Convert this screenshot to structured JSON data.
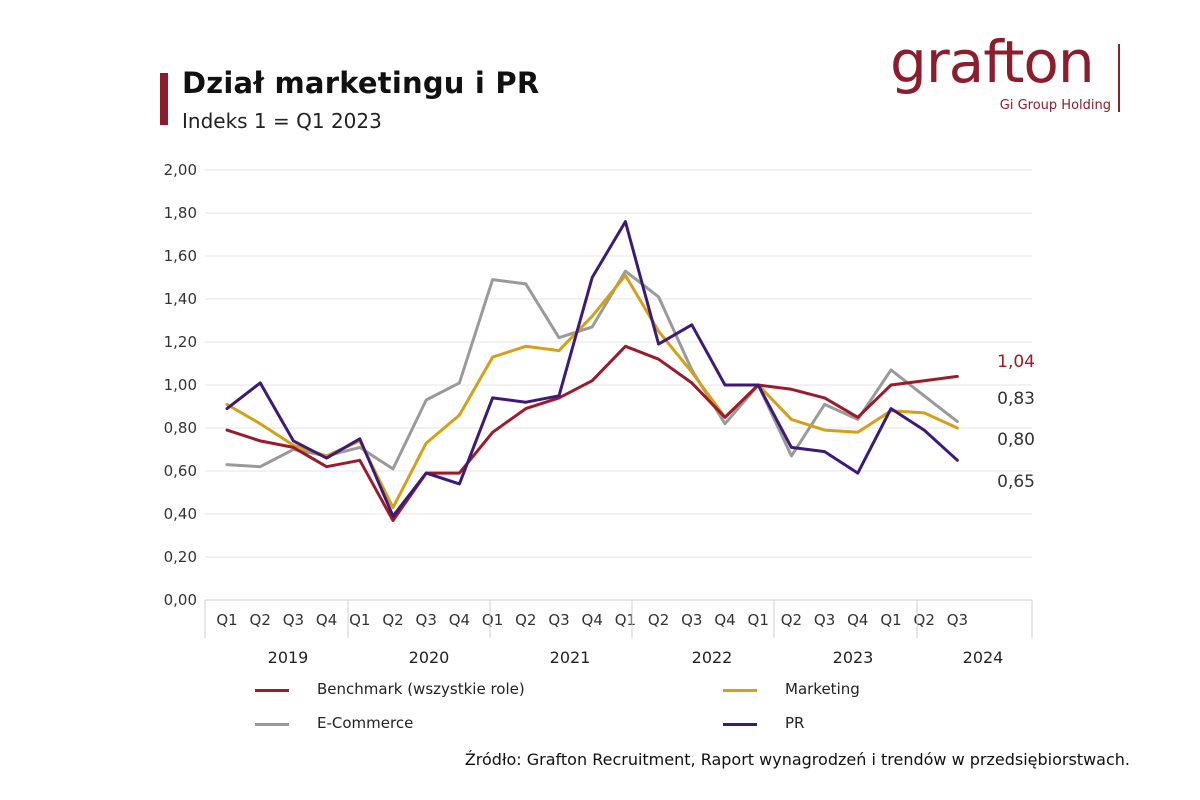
{
  "header": {
    "title": "Dział marketingu i PR",
    "subtitle": "Indeks 1 = Q1 2023"
  },
  "logo": {
    "text": "grafton",
    "subtext": "Gi Group Holding"
  },
  "source": "Źródło: Grafton Recruitment, Raport wynagrodzeń i trendów w przedsiębiorstwach.",
  "colors": {
    "benchmark": "#9b1b2a",
    "marketing": "#d4a017",
    "ecommerce": "#9a9a9a",
    "pr": "#3e1a78",
    "axis": "#cfcfcf"
  },
  "chart_data": {
    "type": "line",
    "title": "Dział marketingu i PR",
    "subtitle": "Indeks 1 = Q1 2023",
    "ylim": [
      0,
      2
    ],
    "yticks": [
      "0,00",
      "0,20",
      "0,40",
      "0,60",
      "0,80",
      "1,00",
      "1,20",
      "1,40",
      "1,60",
      "1,80",
      "2,00"
    ],
    "quarter_labels": [
      "Q1",
      "Q2",
      "Q3",
      "Q4",
      "Q1",
      "Q2",
      "Q3",
      "Q4",
      "Q1",
      "Q2",
      "Q3",
      "Q4",
      "Q1",
      "Q2",
      "Q3",
      "Q4",
      "Q1",
      "Q2",
      "Q3",
      "Q4",
      "Q1",
      "Q2",
      "Q3"
    ],
    "years": [
      "2019",
      "2020",
      "2021",
      "2022",
      "2023",
      "2024"
    ],
    "series": [
      {
        "key": "benchmark",
        "name": "Benchmark (wszystkie role)",
        "values": [
          0.79,
          0.74,
          0.71,
          0.62,
          0.65,
          0.37,
          0.59,
          0.59,
          0.78,
          0.89,
          0.94,
          1.02,
          1.18,
          1.12,
          1.01,
          0.85,
          1.0,
          0.98,
          0.94,
          0.85,
          1.0,
          1.02,
          1.04
        ],
        "end_label": "1,04"
      },
      {
        "key": "marketing",
        "name": "Marketing",
        "values": [
          0.91,
          0.82,
          0.72,
          0.67,
          0.74,
          0.43,
          0.73,
          0.86,
          1.13,
          1.18,
          1.16,
          1.32,
          1.51,
          1.25,
          1.06,
          0.85,
          1.0,
          0.84,
          0.79,
          0.78,
          0.88,
          0.87,
          0.8
        ],
        "end_label": "0,80"
      },
      {
        "key": "ecommerce",
        "name": "E-Commerce",
        "values": [
          0.63,
          0.62,
          0.7,
          0.67,
          0.71,
          0.61,
          0.93,
          1.01,
          1.49,
          1.47,
          1.22,
          1.27,
          1.53,
          1.41,
          1.07,
          0.82,
          1.0,
          0.67,
          0.91,
          0.84,
          1.07,
          0.95,
          0.83
        ],
        "end_label": "0,83"
      },
      {
        "key": "pr",
        "name": "PR",
        "values": [
          0.89,
          1.01,
          0.74,
          0.66,
          0.75,
          0.39,
          0.59,
          0.54,
          0.94,
          0.92,
          0.95,
          1.5,
          1.76,
          1.19,
          1.28,
          1.0,
          1.0,
          0.71,
          0.69,
          0.59,
          0.89,
          0.79,
          0.65
        ],
        "end_label": "0,65"
      }
    ]
  }
}
